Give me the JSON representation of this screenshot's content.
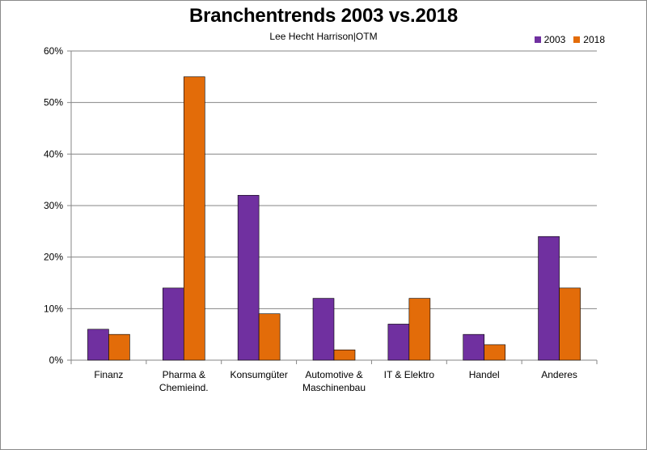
{
  "chart_data": {
    "type": "bar",
    "title": "Branchentrends 2003 vs.2018",
    "subtitle": "Lee Hecht Harrison|OTM",
    "categories": [
      [
        "Finanz"
      ],
      [
        "Pharma &",
        "Chemieind."
      ],
      [
        "Konsumgüter"
      ],
      [
        "Automotive &",
        "Maschinenbau"
      ],
      [
        "IT & Elektro"
      ],
      [
        "Handel"
      ],
      [
        "Anderes"
      ]
    ],
    "series": [
      {
        "name": "2003",
        "color": "#7030a0",
        "values": [
          0.06,
          0.14,
          0.32,
          0.12,
          0.07,
          0.05,
          0.24
        ]
      },
      {
        "name": "2018",
        "color": "#e36c09",
        "values": [
          0.05,
          0.55,
          0.09,
          0.02,
          0.12,
          0.03,
          0.14
        ]
      }
    ],
    "ylim": [
      0,
      0.6
    ],
    "yticks": [
      "0%",
      "10%",
      "20%",
      "30%",
      "40%",
      "50%",
      "60%"
    ],
    "grid": true,
    "legend_position": "top-right"
  }
}
